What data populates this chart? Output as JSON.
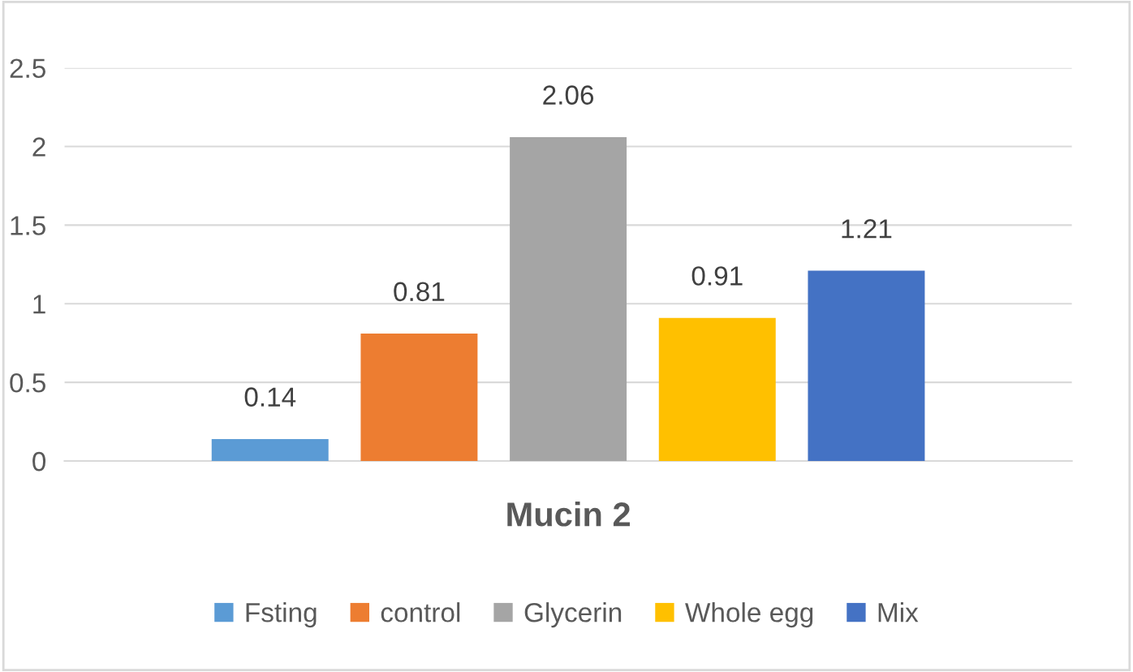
{
  "chart_data": {
    "type": "bar",
    "categories": [
      "Mucin 2"
    ],
    "series": [
      {
        "name": "Fsting",
        "color": "#5b9bd5",
        "values": [
          0.14
        ]
      },
      {
        "name": "control",
        "color": "#ed7d31",
        "values": [
          0.81
        ]
      },
      {
        "name": "Glycerin",
        "color": "#a5a5a5",
        "values": [
          2.06
        ]
      },
      {
        "name": "Whole egg",
        "color": "#ffc000",
        "values": [
          0.91
        ]
      },
      {
        "name": "Mix",
        "color": "#4472c4",
        "values": [
          1.21
        ]
      }
    ],
    "ylim": [
      0,
      2.5
    ],
    "yticks": [
      0,
      0.5,
      1,
      1.5,
      2,
      2.5
    ],
    "grid": "y",
    "legend": "bottom",
    "data_labels": true
  }
}
